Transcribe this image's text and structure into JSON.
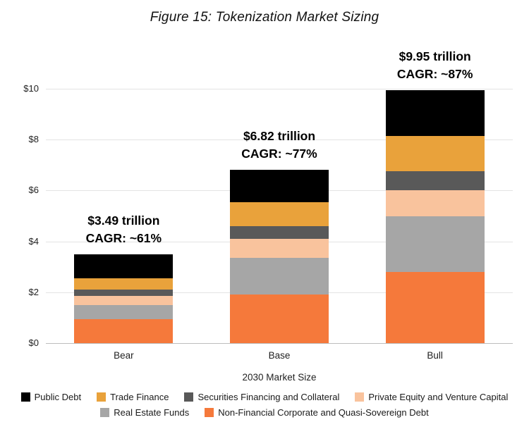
{
  "chart_data": {
    "type": "bar",
    "stacked": true,
    "title": "Figure 15: Tokenization Market Sizing",
    "xlabel": "2030 Market Size",
    "ylabel": "",
    "ylim": [
      0,
      10
    ],
    "yticks": [
      0,
      2,
      4,
      6,
      8,
      10
    ],
    "ytick_labels": [
      "$0",
      "$2",
      "$4",
      "$6",
      "$8",
      "$10"
    ],
    "grid": true,
    "categories": [
      "Bear",
      "Base",
      "Bull"
    ],
    "series": [
      {
        "name": "Non-Financial Corporate and Quasi-Sovereign Debt",
        "color": "#F5793B",
        "values": [
          0.95,
          1.9,
          2.8
        ]
      },
      {
        "name": "Real Estate Funds",
        "color": "#A6A6A6",
        "values": [
          0.55,
          1.45,
          2.2
        ]
      },
      {
        "name": "Private Equity and Venture Capital",
        "color": "#F9C39D",
        "values": [
          0.35,
          0.75,
          1.0
        ]
      },
      {
        "name": "Securities Financing and Collateral",
        "color": "#595959",
        "values": [
          0.25,
          0.5,
          0.75
        ]
      },
      {
        "name": "Trade Finance",
        "color": "#E9A23B",
        "values": [
          0.45,
          0.95,
          1.4
        ]
      },
      {
        "name": "Public Debt",
        "color": "#000000",
        "values": [
          0.94,
          1.27,
          1.8
        ]
      }
    ],
    "totals": [
      3.49,
      6.82,
      9.95
    ],
    "annotations": [
      {
        "category": "Bear",
        "line1": "$3.49 trillion",
        "line2": "CAGR: ~61%"
      },
      {
        "category": "Base",
        "line1": "$6.82 trillion",
        "line2": "CAGR: ~77%"
      },
      {
        "category": "Bull",
        "line1": "$9.95 trillion",
        "line2": "CAGR: ~87%"
      }
    ],
    "legend": {
      "position": "bottom",
      "order": [
        "Public Debt",
        "Trade Finance",
        "Securities Financing and Collateral",
        "Private Equity and Venture Capital",
        "Real Estate Funds",
        "Non-Financial Corporate and Quasi-Sovereign Debt"
      ]
    }
  }
}
